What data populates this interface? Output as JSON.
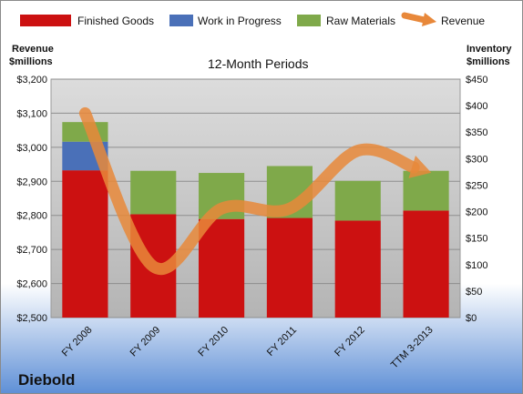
{
  "chart_data": {
    "type": "bar",
    "title": "12-Month Periods",
    "company": "Diebold",
    "left_axis_label": [
      "Revenue",
      "$millions"
    ],
    "right_axis_label": [
      "Inventory",
      "$millions"
    ],
    "categories": [
      "FY 2008",
      "FY 2009",
      "FY 2010",
      "FY 2011",
      "FY 2012",
      "TTM 3-2013"
    ],
    "stacked": true,
    "series": [
      {
        "name": "Finished Goods",
        "axis": "right",
        "color": "#CC1111",
        "values": [
          278,
          195,
          186,
          188,
          183,
          202
        ]
      },
      {
        "name": "Work in Progress",
        "axis": "right",
        "color": "#4A70B8",
        "values": [
          54,
          0,
          0,
          0,
          0,
          0
        ]
      },
      {
        "name": "Raw Materials",
        "axis": "right",
        "color": "#7FA94A",
        "values": [
          37,
          82,
          87,
          98,
          75,
          75
        ]
      },
      {
        "name": "Revenue",
        "axis": "left",
        "type": "line",
        "color": "#E8883A",
        "values": [
          3100,
          2650,
          2820,
          2820,
          2990,
          2930
        ]
      }
    ],
    "left_axis": {
      "min": 2500,
      "max": 3200,
      "step": 100,
      "ticks": [
        "$2,500",
        "$2,600",
        "$2,700",
        "$2,800",
        "$2,900",
        "$3,000",
        "$3,100",
        "$3,200"
      ]
    },
    "right_axis": {
      "min": 0,
      "max": 450,
      "step": 50,
      "ticks": [
        "$0",
        "$50",
        "$100",
        "$150",
        "$200",
        "$250",
        "$300",
        "$350",
        "$400",
        "$450"
      ]
    },
    "legend_position": "top",
    "grid": true
  }
}
